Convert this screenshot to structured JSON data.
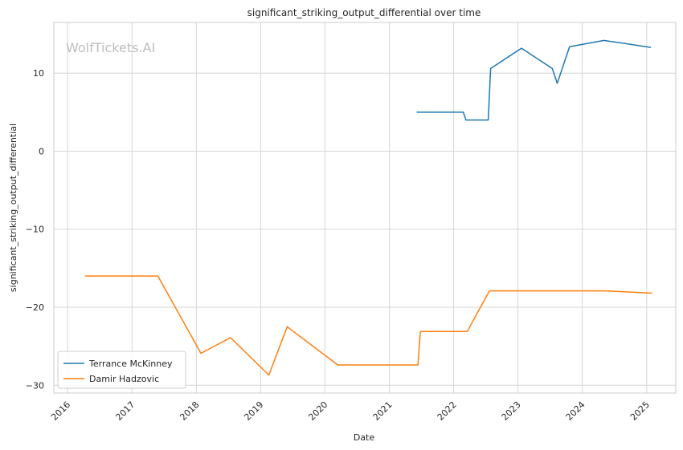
{
  "chart_data": {
    "type": "line",
    "title": "significant_striking_output_differential over time",
    "xlabel": "Date",
    "ylabel": "significant_striking_output_differential",
    "watermark": "WolfTickets.AI",
    "x_ticks": [
      "2016",
      "2017",
      "2018",
      "2019",
      "2020",
      "2021",
      "2022",
      "2023",
      "2024",
      "2025"
    ],
    "y_ticks": [
      {
        "value": 10,
        "label": "10"
      },
      {
        "value": 0,
        "label": "0"
      },
      {
        "value": -10,
        "label": "−10"
      },
      {
        "value": -20,
        "label": "−20"
      },
      {
        "value": -30,
        "label": "−30"
      }
    ],
    "xlim": [
      "2015-10-15",
      "2025-06-15"
    ],
    "ylim": [
      -31,
      16.5
    ],
    "grid": true,
    "legend_position": "lower-left",
    "series": [
      {
        "name": "Terrance McKinney",
        "color": "#1f77b4",
        "points": [
          {
            "x": "2021-06-05",
            "y": 5.0
          },
          {
            "x": "2022-02-25",
            "y": 5.0
          },
          {
            "x": "2022-03-12",
            "y": 4.0
          },
          {
            "x": "2022-07-16",
            "y": 4.0
          },
          {
            "x": "2022-07-30",
            "y": 10.6
          },
          {
            "x": "2023-01-21",
            "y": 13.2
          },
          {
            "x": "2023-07-15",
            "y": 10.6
          },
          {
            "x": "2023-08-12",
            "y": 8.7
          },
          {
            "x": "2023-10-21",
            "y": 13.4
          },
          {
            "x": "2024-05-04",
            "y": 14.2
          },
          {
            "x": "2025-01-25",
            "y": 13.3
          }
        ]
      },
      {
        "name": "Damir Hadzovic",
        "color": "#ff7f0e",
        "points": [
          {
            "x": "2016-04-10",
            "y": -16.0
          },
          {
            "x": "2017-05-28",
            "y": -16.0
          },
          {
            "x": "2018-01-27",
            "y": -25.9
          },
          {
            "x": "2018-07-14",
            "y": -23.9
          },
          {
            "x": "2019-02-17",
            "y": -28.7
          },
          {
            "x": "2019-06-01",
            "y": -22.5
          },
          {
            "x": "2020-03-14",
            "y": -27.4
          },
          {
            "x": "2021-06-12",
            "y": -27.4
          },
          {
            "x": "2021-06-26",
            "y": -23.1
          },
          {
            "x": "2022-03-19",
            "y": -23.1
          },
          {
            "x": "2022-07-23",
            "y": -17.9
          },
          {
            "x": "2024-05-11",
            "y": -17.9
          },
          {
            "x": "2025-02-01",
            "y": -18.2
          }
        ]
      }
    ]
  }
}
